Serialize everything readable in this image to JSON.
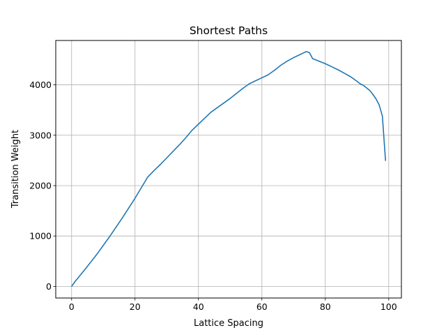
{
  "chart_data": {
    "type": "line",
    "title": "Shortest Paths",
    "xlabel": "Lattice Spacing",
    "ylabel": "Transition Weight",
    "xlim": [
      -5,
      104
    ],
    "ylim": [
      -230,
      4880
    ],
    "xticks": [
      0,
      20,
      40,
      60,
      80,
      100
    ],
    "yticks": [
      0,
      1000,
      2000,
      3000,
      4000
    ],
    "grid": true,
    "colors": {
      "line": "#1f77b4",
      "grid": "#b0b0b0",
      "axes": "#000000"
    },
    "series": [
      {
        "x": [
          0,
          1,
          4,
          8,
          12,
          16,
          20,
          22,
          24,
          26,
          28,
          30,
          32,
          34,
          36,
          38,
          40,
          42,
          44,
          46,
          48,
          50,
          52,
          54,
          56,
          58,
          60,
          62,
          64,
          66,
          68,
          70,
          72,
          73,
          74,
          75,
          76,
          78,
          80,
          82,
          84,
          86,
          88,
          90,
          91,
          92,
          93,
          94,
          95,
          96,
          97,
          98,
          99
        ],
        "y": [
          0,
          90,
          320,
          640,
          990,
          1360,
          1750,
          1960,
          2170,
          2300,
          2420,
          2550,
          2680,
          2810,
          2950,
          3100,
          3220,
          3340,
          3460,
          3550,
          3640,
          3730,
          3830,
          3930,
          4020,
          4080,
          4140,
          4200,
          4290,
          4390,
          4470,
          4540,
          4600,
          4630,
          4660,
          4640,
          4520,
          4470,
          4420,
          4360,
          4300,
          4230,
          4160,
          4070,
          4020,
          3990,
          3940,
          3890,
          3810,
          3720,
          3600,
          3380,
          2490
        ]
      }
    ]
  }
}
